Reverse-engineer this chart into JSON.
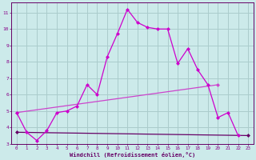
{
  "xlabel": "Windchill (Refroidissement éolien,°C)",
  "bg_color": "#cceaea",
  "grid_color": "#aacccc",
  "line_color_main": "#cc00cc",
  "line_color_min": "#660066",
  "line_color_max": "#cc44cc",
  "x_main": [
    0,
    1,
    2,
    3,
    4,
    5,
    6,
    7,
    8,
    9,
    10,
    11,
    12,
    13,
    14,
    15,
    16,
    17,
    18,
    19,
    20,
    21,
    22
  ],
  "y_main": [
    4.9,
    3.7,
    3.2,
    3.8,
    4.9,
    5.0,
    5.3,
    6.6,
    6.0,
    8.3,
    9.7,
    11.2,
    10.4,
    10.1,
    10.0,
    10.0,
    7.9,
    8.8,
    7.5,
    6.6,
    4.6,
    4.9,
    3.5
  ],
  "x_min": [
    0,
    23
  ],
  "y_min": [
    3.7,
    3.5
  ],
  "x_max": [
    0,
    20
  ],
  "y_max": [
    4.9,
    6.6
  ],
  "ylim": [
    3.0,
    11.6
  ],
  "xlim": [
    -0.5,
    23.5
  ],
  "yticks": [
    3,
    4,
    5,
    6,
    7,
    8,
    9,
    10,
    11
  ],
  "xticks": [
    0,
    1,
    2,
    3,
    4,
    5,
    6,
    7,
    8,
    9,
    10,
    11,
    12,
    13,
    14,
    15,
    16,
    17,
    18,
    19,
    20,
    21,
    22,
    23
  ],
  "tick_color": "#880088",
  "label_color": "#660066"
}
